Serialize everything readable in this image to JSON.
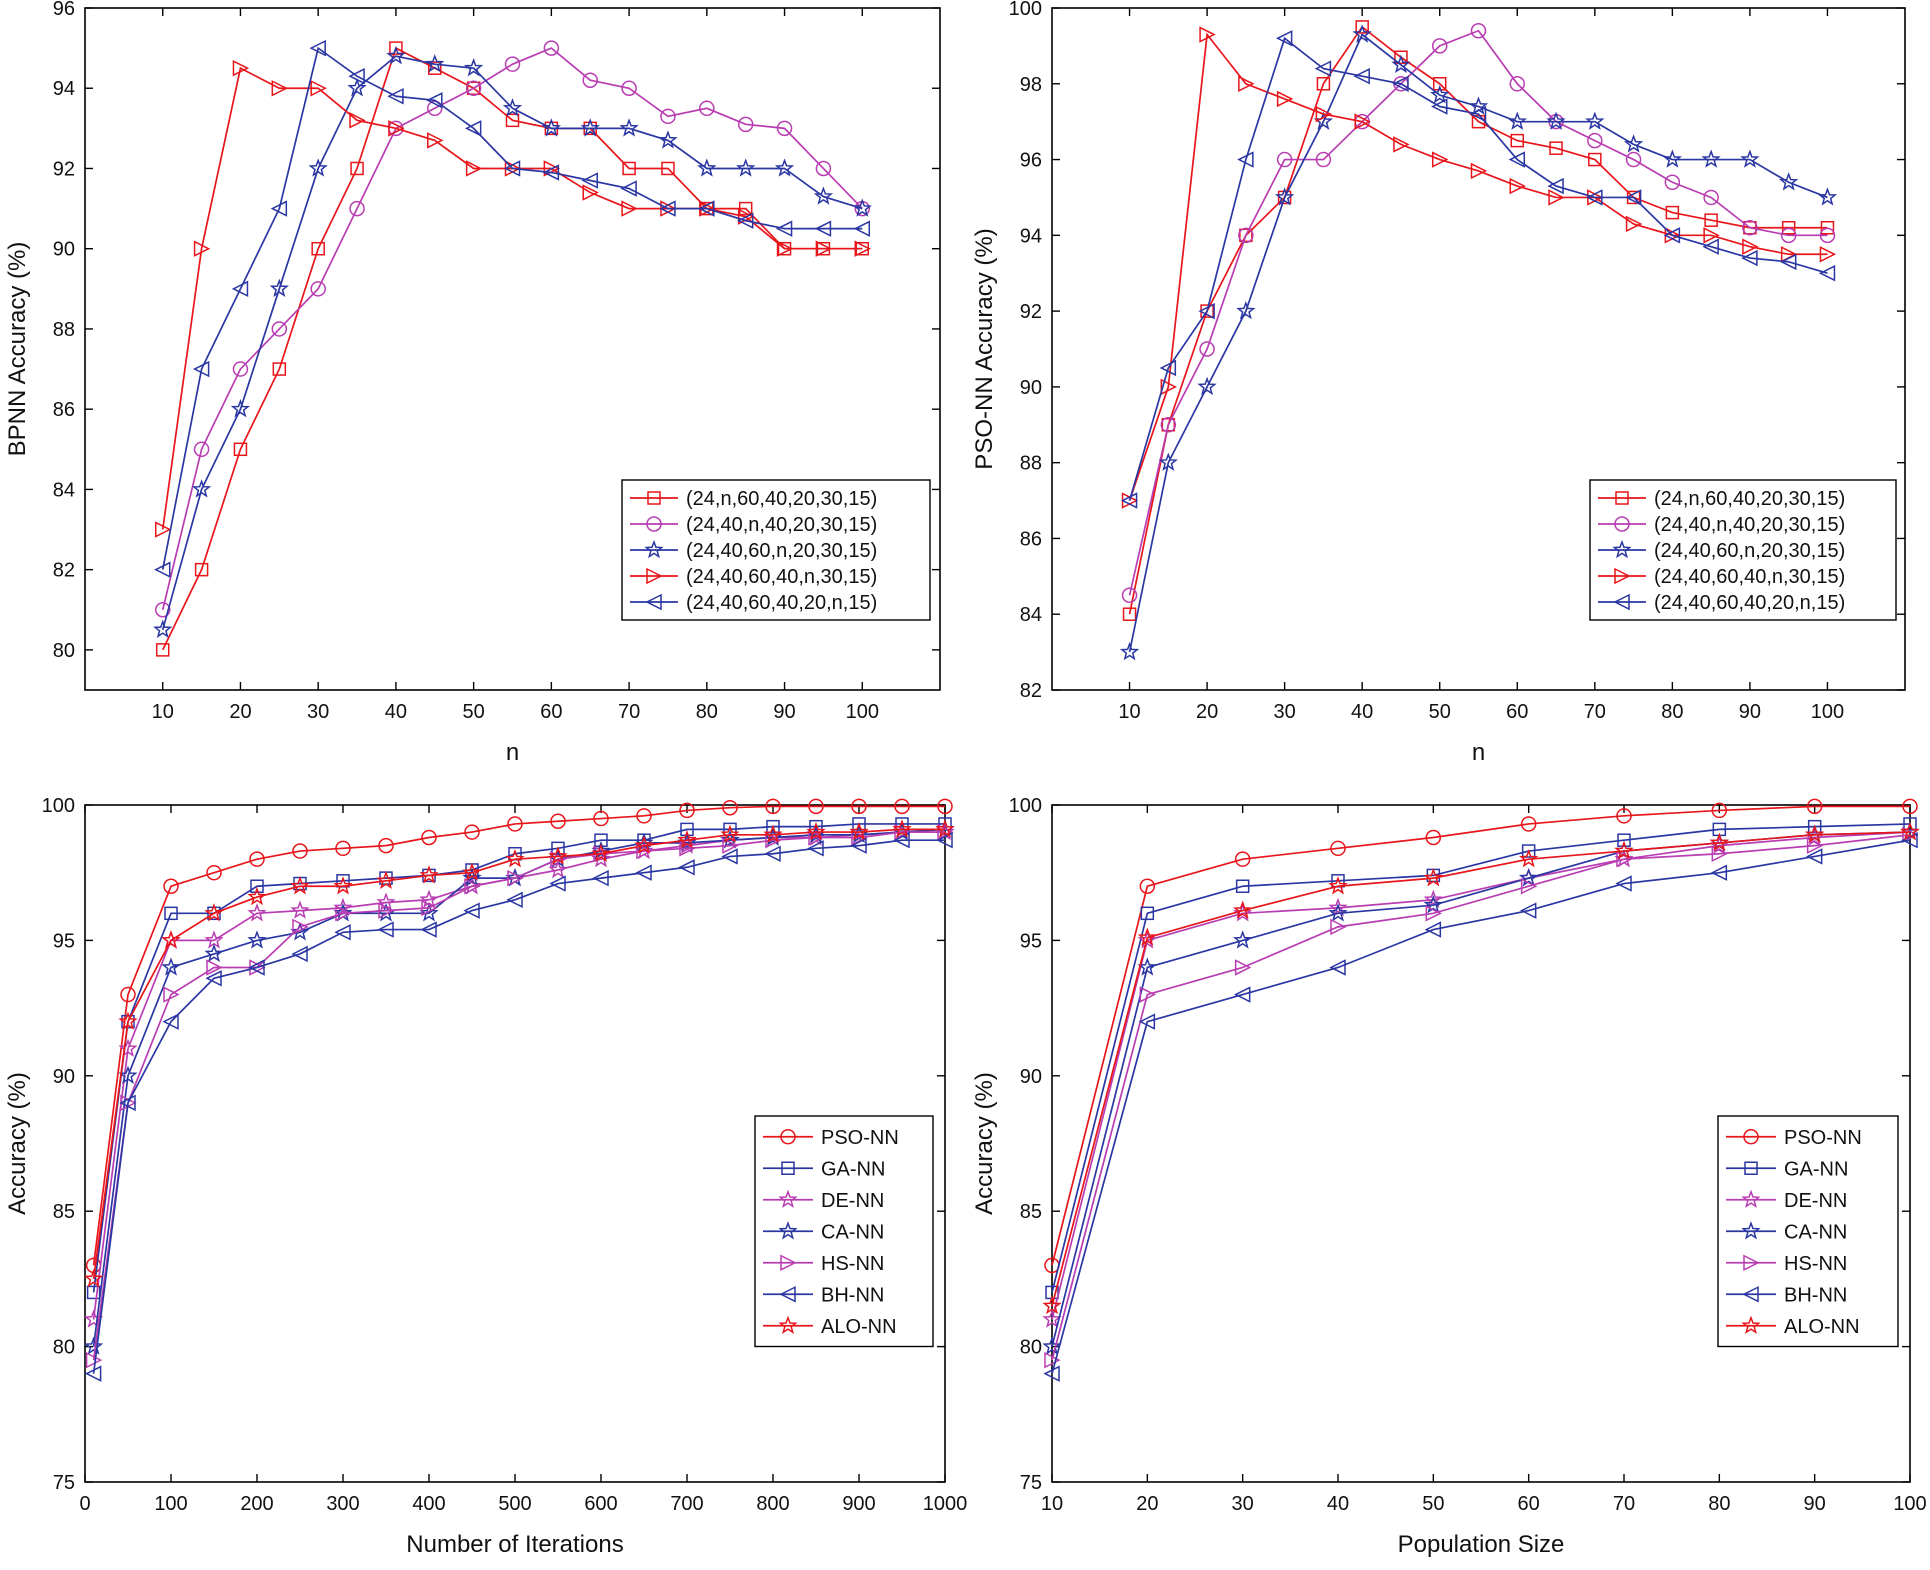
{
  "colors": {
    "red": "#e8151b",
    "purple": "#b93db2",
    "blue": "#2a36a2"
  },
  "chart_data": [
    {
      "id": "bpnn",
      "type": "line",
      "xlabel": "n",
      "ylabel": "BPNN Accuracy (%)",
      "xlim": [
        0,
        110
      ],
      "ylim": [
        79,
        96
      ],
      "xticks": [
        10,
        20,
        30,
        40,
        50,
        60,
        70,
        80,
        90,
        100
      ],
      "yticks": [
        80,
        82,
        84,
        86,
        88,
        90,
        92,
        94,
        96
      ],
      "legend_position": "bottom-right",
      "x": [
        10,
        15,
        20,
        25,
        30,
        35,
        40,
        45,
        50,
        55,
        60,
        65,
        70,
        75,
        80,
        85,
        90,
        95,
        100
      ],
      "series": [
        {
          "name": "(24,n,60,40,20,30,15)",
          "color": "red",
          "marker": "square",
          "values": [
            80,
            82,
            85,
            87,
            90,
            92,
            95,
            94.5,
            94,
            93.2,
            93,
            93,
            92,
            92,
            91,
            91,
            90,
            90,
            90
          ]
        },
        {
          "name": "(24,40,n,40,20,30,15)",
          "color": "purple",
          "marker": "circle",
          "values": [
            81,
            85,
            87,
            88,
            89,
            91,
            93,
            93.5,
            94,
            94.6,
            95,
            94.2,
            94,
            93.3,
            93.5,
            93.1,
            93,
            92,
            91
          ]
        },
        {
          "name": "(24,40,60,n,20,30,15)",
          "color": "blue",
          "marker": "star",
          "values": [
            80.5,
            84,
            86,
            89,
            92,
            94,
            94.8,
            94.6,
            94.5,
            93.5,
            93,
            93,
            93,
            92.7,
            92,
            92,
            92,
            91.3,
            91
          ]
        },
        {
          "name": "(24,40,60,40,n,30,15)",
          "color": "red",
          "marker": "triangle-right",
          "values": [
            83,
            90,
            94.5,
            94,
            94,
            93.2,
            93,
            92.7,
            92,
            92,
            92,
            91.4,
            91,
            91,
            91,
            90.8,
            90,
            90,
            90
          ]
        },
        {
          "name": "(24,40,60,40,20,n,15)",
          "color": "blue",
          "marker": "triangle-left",
          "values": [
            82,
            87,
            89,
            91,
            95,
            94.3,
            93.8,
            93.7,
            93,
            92,
            91.9,
            91.7,
            91.5,
            91,
            91,
            90.7,
            90.5,
            90.5,
            90.5
          ]
        }
      ]
    },
    {
      "id": "psonn",
      "type": "line",
      "xlabel": "n",
      "ylabel": "PSO-NN Accuracy (%)",
      "xlim": [
        0,
        110
      ],
      "ylim": [
        82,
        100
      ],
      "xticks": [
        10,
        20,
        30,
        40,
        50,
        60,
        70,
        80,
        90,
        100
      ],
      "yticks": [
        82,
        84,
        86,
        88,
        90,
        92,
        94,
        96,
        98,
        100
      ],
      "legend_position": "bottom-right",
      "x": [
        10,
        15,
        20,
        25,
        30,
        35,
        40,
        45,
        50,
        55,
        60,
        65,
        70,
        75,
        80,
        85,
        90,
        95,
        100
      ],
      "series": [
        {
          "name": "(24,n,60,40,20,30,15)",
          "color": "red",
          "marker": "square",
          "values": [
            84,
            89,
            92,
            94,
            95,
            98,
            99.5,
            98.7,
            98,
            97,
            96.5,
            96.3,
            96,
            95,
            94.6,
            94.4,
            94.2,
            94.2,
            94.2
          ]
        },
        {
          "name": "(24,40,n,40,20,30,15)",
          "color": "purple",
          "marker": "circle",
          "values": [
            84.5,
            89,
            91,
            94,
            96,
            96,
            97,
            98,
            99,
            99.4,
            98,
            97,
            96.5,
            96,
            95.4,
            95,
            94.2,
            94,
            94
          ]
        },
        {
          "name": "(24,40,60,n,20,30,15)",
          "color": "blue",
          "marker": "star",
          "values": [
            83,
            88,
            90,
            92,
            95,
            97,
            99.3,
            98.5,
            97.7,
            97.4,
            97,
            97,
            97,
            96.4,
            96,
            96,
            96,
            95.4,
            95
          ]
        },
        {
          "name": "(24,40,60,40,n,30,15)",
          "color": "red",
          "marker": "triangle-right",
          "values": [
            87,
            90,
            99.3,
            98,
            97.6,
            97.2,
            97,
            96.4,
            96,
            95.7,
            95.3,
            95,
            95,
            94.3,
            94,
            94,
            93.7,
            93.5,
            93.5
          ]
        },
        {
          "name": "(24,40,60,40,20,n,15)",
          "color": "blue",
          "marker": "triangle-left",
          "values": [
            87,
            90.5,
            92,
            96,
            99.2,
            98.4,
            98.2,
            98,
            97.4,
            97.2,
            96,
            95.3,
            95,
            95,
            94,
            93.7,
            93.4,
            93.3,
            93
          ]
        }
      ]
    },
    {
      "id": "iterations",
      "type": "line",
      "xlabel": "Number of Iterations",
      "ylabel": "Accuracy (%)",
      "xlim": [
        0,
        1000
      ],
      "ylim": [
        75,
        100
      ],
      "xticks": [
        0,
        100,
        200,
        300,
        400,
        500,
        600,
        700,
        800,
        900,
        1000
      ],
      "yticks": [
        75,
        80,
        85,
        90,
        95,
        100
      ],
      "legend_position": "bottom-right",
      "x": [
        10,
        50,
        100,
        150,
        200,
        250,
        300,
        350,
        400,
        450,
        500,
        550,
        600,
        650,
        700,
        750,
        800,
        850,
        900,
        950,
        1000
      ],
      "series": [
        {
          "name": "PSO-NN",
          "color": "red",
          "marker": "circle",
          "values": [
            83,
            93,
            97,
            97.5,
            98,
            98.3,
            98.4,
            98.5,
            98.8,
            99,
            99.3,
            99.4,
            99.5,
            99.6,
            99.8,
            99.9,
            99.95,
            99.95,
            99.95,
            99.95,
            99.95
          ]
        },
        {
          "name": "GA-NN",
          "color": "blue",
          "marker": "square",
          "values": [
            82,
            92,
            96,
            96,
            97,
            97.1,
            97.2,
            97.3,
            97.4,
            97.6,
            98.2,
            98.4,
            98.7,
            98.7,
            99.1,
            99.1,
            99.2,
            99.2,
            99.3,
            99.3,
            99.3
          ]
        },
        {
          "name": "DE-NN",
          "color": "purple",
          "marker": "star",
          "values": [
            81,
            91,
            95,
            95,
            96,
            96.1,
            96.2,
            96.4,
            96.5,
            97,
            97.3,
            97.6,
            98,
            98.3,
            98.5,
            98.7,
            98.8,
            98.8,
            98.9,
            99,
            99
          ]
        },
        {
          "name": "CA-NN",
          "color": "blue",
          "marker": "star",
          "values": [
            80,
            90,
            94,
            94.5,
            95,
            95.3,
            96,
            96,
            96,
            97.3,
            97.3,
            98,
            98.3,
            98.6,
            98.6,
            98.7,
            98.8,
            98.9,
            98.9,
            99,
            99.1
          ]
        },
        {
          "name": "HS-NN",
          "color": "purple",
          "marker": "triangle-right",
          "values": [
            79.5,
            89,
            93,
            94,
            94,
            95.5,
            96,
            96.1,
            96.2,
            97,
            97.3,
            98,
            98.2,
            98.3,
            98.4,
            98.5,
            98.7,
            98.8,
            98.8,
            99,
            99
          ]
        },
        {
          "name": "BH-NN",
          "color": "blue",
          "marker": "triangle-left",
          "values": [
            79,
            89,
            92,
            93.6,
            94,
            94.5,
            95.3,
            95.4,
            95.4,
            96.1,
            96.5,
            97.1,
            97.3,
            97.5,
            97.7,
            98.1,
            98.2,
            98.4,
            98.5,
            98.7,
            98.7
          ]
        },
        {
          "name": "ALO-NN",
          "color": "red",
          "marker": "star",
          "values": [
            82.5,
            92,
            95,
            96,
            96.6,
            97,
            97,
            97.2,
            97.4,
            97.5,
            98,
            98.1,
            98.2,
            98.5,
            98.7,
            98.9,
            98.9,
            99,
            99,
            99.1,
            99.1
          ]
        }
      ]
    },
    {
      "id": "population",
      "type": "line",
      "xlabel": "Population Size",
      "ylabel": "Accuracy (%)",
      "xlim": [
        10,
        100
      ],
      "ylim": [
        75,
        100
      ],
      "xticks": [
        10,
        20,
        30,
        40,
        50,
        60,
        70,
        80,
        90,
        100
      ],
      "yticks": [
        75,
        80,
        85,
        90,
        95,
        100
      ],
      "legend_position": "bottom-right",
      "x": [
        10,
        20,
        30,
        40,
        50,
        60,
        70,
        80,
        90,
        100
      ],
      "series": [
        {
          "name": "PSO-NN",
          "color": "red",
          "marker": "circle",
          "values": [
            83,
            97,
            98,
            98.4,
            98.8,
            99.3,
            99.6,
            99.8,
            99.95,
            99.95
          ]
        },
        {
          "name": "GA-NN",
          "color": "blue",
          "marker": "square",
          "values": [
            82,
            96,
            97,
            97.2,
            97.4,
            98.3,
            98.7,
            99.1,
            99.2,
            99.3
          ]
        },
        {
          "name": "DE-NN",
          "color": "purple",
          "marker": "star",
          "values": [
            81,
            95,
            96,
            96.2,
            96.5,
            97.3,
            98,
            98.5,
            98.8,
            99
          ]
        },
        {
          "name": "CA-NN",
          "color": "blue",
          "marker": "star",
          "values": [
            80,
            94,
            95,
            96,
            96.3,
            97.3,
            98.3,
            98.6,
            98.9,
            99
          ]
        },
        {
          "name": "HS-NN",
          "color": "purple",
          "marker": "triangle-right",
          "values": [
            79.5,
            93,
            94,
            95.5,
            96,
            97,
            98,
            98.2,
            98.5,
            98.9
          ]
        },
        {
          "name": "BH-NN",
          "color": "blue",
          "marker": "triangle-left",
          "values": [
            79,
            92,
            93,
            94,
            95.4,
            96.1,
            97.1,
            97.5,
            98.1,
            98.7
          ]
        },
        {
          "name": "ALO-NN",
          "color": "red",
          "marker": "star",
          "values": [
            81.5,
            95.1,
            96.1,
            97,
            97.3,
            98,
            98.3,
            98.6,
            98.9,
            99
          ]
        }
      ]
    }
  ]
}
